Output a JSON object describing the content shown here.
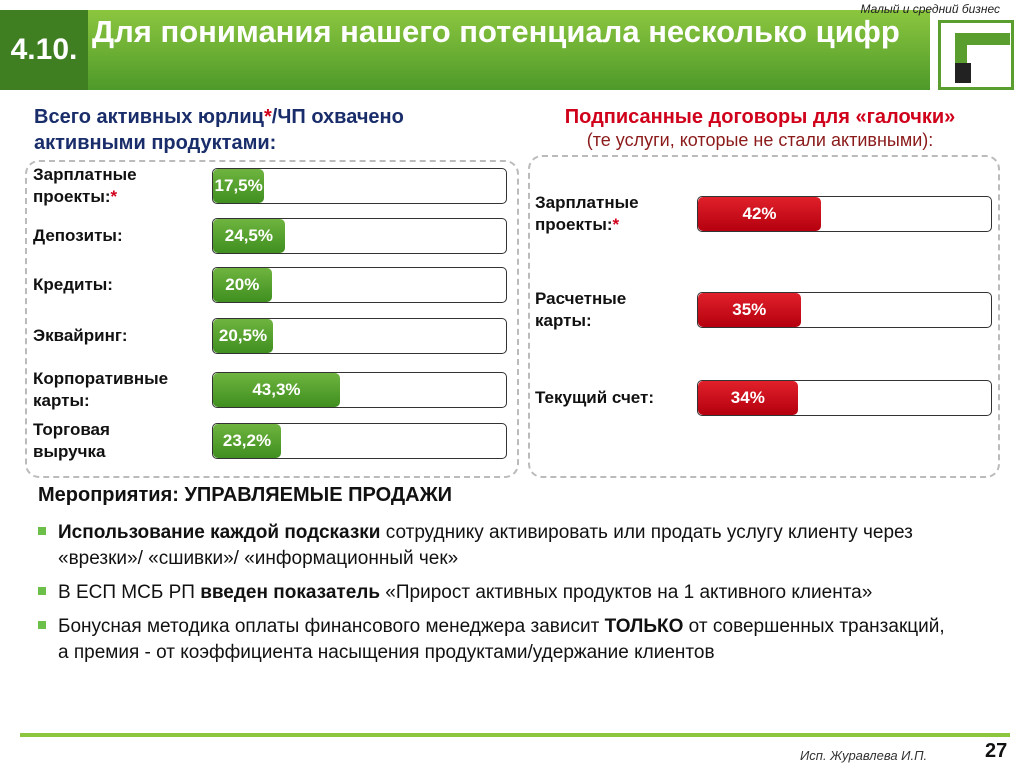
{
  "header": {
    "tag": "Малый и средний бизнес",
    "number": "4.10.",
    "title": "Для понимания нашего потенциала несколько цифр"
  },
  "left_panel": {
    "title": [
      "Всего активных юрлиц",
      "*",
      "/ЧП охвачено активными продуктами:"
    ],
    "rows": [
      {
        "label": "Зарплатные проекты:",
        "mark": "*",
        "value": 17.5,
        "value_label": "17,5%"
      },
      {
        "label": "Депозиты:",
        "value": 24.5,
        "value_label": "24,5%"
      },
      {
        "label": "Кредиты:",
        "value": 20,
        "value_label": "20%"
      },
      {
        "label": "Эквайринг:",
        "value": 20.5,
        "value_label": "20,5%"
      },
      {
        "label": "Корпоративные карты:",
        "value": 43.3,
        "value_label": "43,3%"
      },
      {
        "label": "Торговая выручка",
        "value": 23.2,
        "value_label": "23,2%"
      }
    ]
  },
  "right_panel": {
    "title": "Подписанные договоры для «галочки»",
    "subtitle": "(те услуги, которые не стали активными):",
    "rows": [
      {
        "label": "Зарплатные проекты:",
        "mark": "*",
        "value": 42,
        "value_label": "42%"
      },
      {
        "label": "Расчетные карты:",
        "value": 35,
        "value_label": "35%"
      },
      {
        "label": "Текущий счет:",
        "value": 34,
        "value_label": "34%"
      }
    ]
  },
  "measures": {
    "title": "Мероприятия: УПРАВЛЯЕМЫЕ ПРОДАЖИ",
    "bullets": [
      [
        {
          "text": "Использование каждой подсказки",
          "bold": true
        },
        {
          "text": " сотруднику активировать или продать услугу клиенту через «врезки»/ «сшивки»/ «информационный чек»"
        }
      ],
      [
        {
          "text": "В ЕСП МСБ РП "
        },
        {
          "text": "введен показатель",
          "bold": true
        },
        {
          "text": " «Прирост активных продуктов на 1 активного клиента»"
        }
      ],
      [
        {
          "text": "Бонусная методика оплаты финансового менеджера зависит "
        },
        {
          "text": "ТОЛЬКО",
          "bold": true
        },
        {
          "text": " от совершенных транзакций, а премия - от коэффициента насыщения продуктами/удержание клиентов"
        }
      ]
    ]
  },
  "footer": {
    "author": "Исп. Журавлева И.П.",
    "page": "27"
  }
}
